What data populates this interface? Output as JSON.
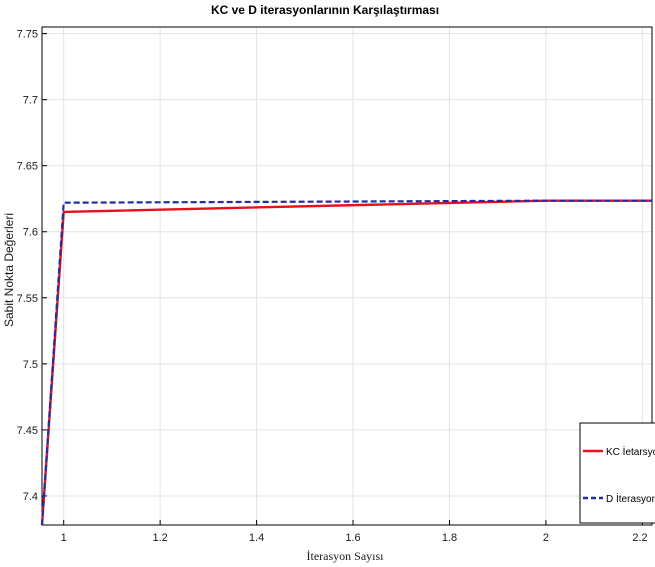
{
  "chart_data": {
    "type": "line",
    "title": "KC ve D iterasyonlarının Karşılaştırması",
    "xlabel": "İterasyon Sayısı",
    "ylabel": "Sabit Nokta Değerleri",
    "xlim": [
      0.955,
      2.22
    ],
    "ylim": [
      7.378,
      7.755
    ],
    "xticks": [
      1,
      1.2,
      1.4,
      1.6,
      1.8,
      2,
      2.2
    ],
    "yticks": [
      7.4,
      7.45,
      7.5,
      7.55,
      7.6,
      7.65,
      7.7,
      7.75
    ],
    "grid": true,
    "legend_position": "bottom-right",
    "series": [
      {
        "name": "KC İetarsyonu",
        "color": "#e8101c",
        "style": "solid",
        "x": [
          0.955,
          1,
          2,
          2.22
        ],
        "y": [
          7.378,
          7.615,
          7.6235,
          7.6235
        ]
      },
      {
        "name": "D İterasyonu",
        "color": "#1f2ea6",
        "style": "dashed",
        "x": [
          0.955,
          1,
          2,
          2.22
        ],
        "y": [
          7.378,
          7.622,
          7.6235,
          7.6235
        ]
      }
    ]
  }
}
